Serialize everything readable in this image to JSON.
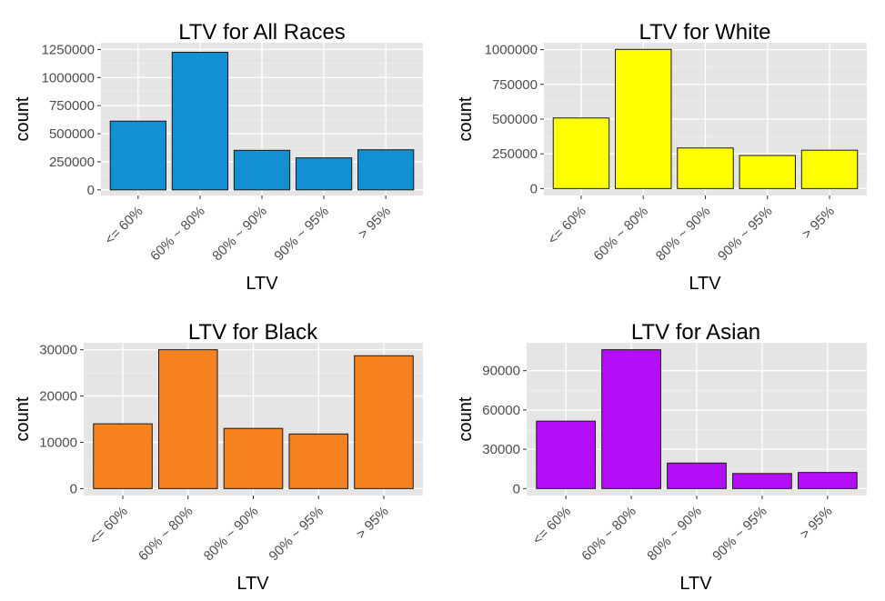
{
  "chart_data": [
    {
      "type": "bar",
      "title": "LTV for All Races",
      "xlabel": "LTV",
      "ylabel": "count",
      "categories": [
        "<= 60%",
        "60% ~ 80%",
        "80% ~ 90%",
        "90% ~ 95%",
        "> 95%"
      ],
      "values": [
        612000,
        1225000,
        352000,
        285000,
        357000
      ],
      "ylim": [
        -50000,
        1310000
      ],
      "yticks": [
        0,
        250000,
        500000,
        750000,
        1000000,
        1250000
      ],
      "ytick_labels": [
        "0",
        "250000",
        "500000",
        "750000",
        "1000000",
        "1250000"
      ],
      "color": "#138fd4",
      "grid": true
    },
    {
      "type": "bar",
      "title": "LTV for White",
      "xlabel": "LTV",
      "ylabel": "count",
      "categories": [
        "<= 60%",
        "60% ~ 80%",
        "80% ~ 90%",
        "90% ~ 95%",
        "> 95%"
      ],
      "values": [
        508000,
        1002000,
        292000,
        238000,
        276000
      ],
      "ylim": [
        -50000,
        1050000
      ],
      "yticks": [
        0,
        250000,
        500000,
        750000,
        1000000
      ],
      "ytick_labels": [
        "0",
        "250000",
        "500000",
        "750000",
        "1000000"
      ],
      "color": "#ffff00",
      "grid": true
    },
    {
      "type": "bar",
      "title": "LTV for Black",
      "xlabel": "LTV",
      "ylabel": "count",
      "categories": [
        "<= 60%",
        "60% ~ 80%",
        "80% ~ 90%",
        "90% ~ 95%",
        "> 95%"
      ],
      "values": [
        14000,
        30000,
        13000,
        11800,
        28700
      ],
      "ylim": [
        -1500,
        31500
      ],
      "yticks": [
        0,
        10000,
        20000,
        30000
      ],
      "ytick_labels": [
        "0",
        "10000",
        "20000",
        "30000"
      ],
      "color": "#f5821f",
      "grid": true
    },
    {
      "type": "bar",
      "title": "LTV for Asian",
      "xlabel": "LTV",
      "ylabel": "count",
      "categories": [
        "<= 60%",
        "60% ~ 80%",
        "80% ~ 90%",
        "90% ~ 95%",
        "> 95%"
      ],
      "values": [
        51500,
        106000,
        19500,
        11500,
        12300
      ],
      "ylim": [
        -5300,
        111300
      ],
      "yticks": [
        0,
        30000,
        60000,
        90000
      ],
      "ytick_labels": [
        "0",
        "30000",
        "60000",
        "90000"
      ],
      "color": "#b40df7",
      "grid": true
    }
  ]
}
